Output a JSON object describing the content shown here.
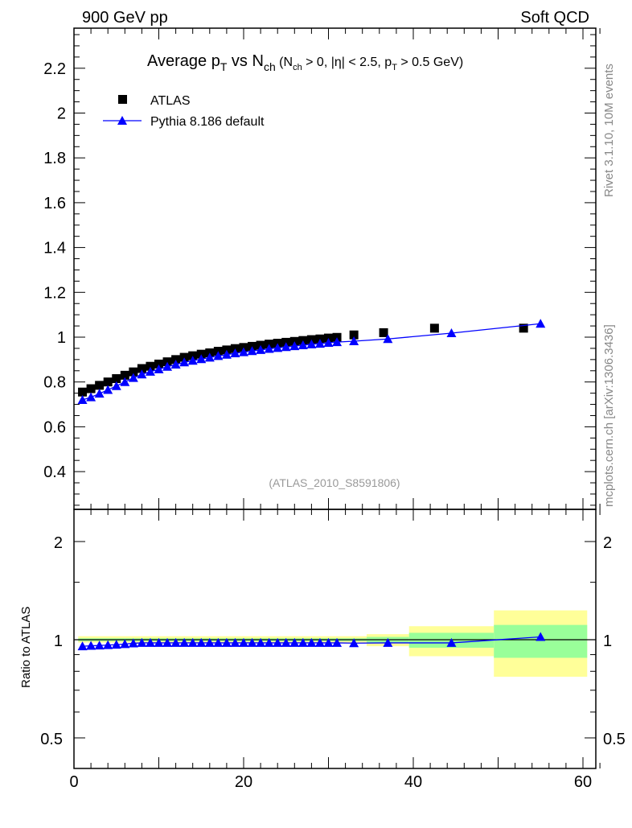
{
  "header": {
    "left": "900 GeV pp",
    "right": "Soft QCD"
  },
  "side": {
    "rivet": "Rivet 3.1.10,  10M events",
    "mcplots": "mcplots.cern.ch [arXiv:1306.3436]"
  },
  "chart_data": {
    "type": "scatter",
    "title": "Average pT vs Nch (Nch > 0, |η| < 2.5, pT > 0.5 GeV)",
    "title_parts": {
      "main": "Average p",
      "sub_T": "T",
      "vs": " vs N",
      "sub_ch": "ch",
      "cond1": " (N",
      "cond2": " > 0, |η| < 2.5, p",
      "cond3": " > 0.5 GeV)"
    },
    "watermark": "(ATLAS_2010_S8591806)",
    "xlim": [
      0,
      62
    ],
    "ylim": [
      0.23,
      2.38
    ],
    "ratio_ylim": [
      0.4,
      2.48
    ],
    "ratio_ylabel": "Ratio to ATLAS",
    "x_ticks": [
      "0",
      "20",
      "40",
      "60"
    ],
    "y_ticks": [
      "0.4",
      "0.6",
      "0.8",
      "1",
      "1.2",
      "1.4",
      "1.6",
      "1.8",
      "2",
      "2.2"
    ],
    "ratio_ticks": [
      "0.5",
      "1",
      "2"
    ],
    "legend": [
      "ATLAS",
      "Pythia 8.186 default"
    ],
    "legend_position": "top-left",
    "colors": {
      "data": "#000000",
      "mc": "#0000ff",
      "band_outer": "#ffff99",
      "band_inner": "#99ff99"
    },
    "series": [
      {
        "name": "ATLAS",
        "x": [
          1,
          2,
          3,
          4,
          5,
          6,
          7,
          8,
          9,
          10,
          11,
          12,
          13,
          14,
          15,
          16,
          17,
          18,
          19,
          20,
          21,
          22,
          23,
          24,
          25,
          26,
          27,
          28,
          29,
          30,
          31,
          33,
          36.5,
          42.5,
          53
        ],
        "y": [
          0.755,
          0.77,
          0.785,
          0.8,
          0.815,
          0.83,
          0.845,
          0.86,
          0.87,
          0.88,
          0.89,
          0.9,
          0.91,
          0.917,
          0.924,
          0.93,
          0.937,
          0.943,
          0.949,
          0.954,
          0.959,
          0.964,
          0.969,
          0.973,
          0.977,
          0.981,
          0.985,
          0.989,
          0.992,
          0.996,
          0.999,
          1.01,
          1.02,
          1.04,
          1.04
        ]
      },
      {
        "name": "Pythia 8.186 default",
        "x": [
          1,
          2,
          3,
          4,
          5,
          6,
          7,
          8,
          9,
          10,
          11,
          12,
          13,
          14,
          15,
          16,
          17,
          18,
          19,
          20,
          21,
          22,
          23,
          24,
          25,
          26,
          27,
          28,
          29,
          30,
          31,
          33,
          37,
          44.5,
          55
        ],
        "y": [
          0.72,
          0.732,
          0.748,
          0.765,
          0.782,
          0.8,
          0.818,
          0.834,
          0.846,
          0.857,
          0.868,
          0.878,
          0.888,
          0.895,
          0.902,
          0.909,
          0.916,
          0.922,
          0.928,
          0.933,
          0.938,
          0.943,
          0.948,
          0.952,
          0.956,
          0.96,
          0.964,
          0.968,
          0.971,
          0.975,
          0.978,
          0.982,
          0.992,
          1.018,
          1.06
        ],
        "ratio": [
          0.955,
          0.958,
          0.96,
          0.963,
          0.966,
          0.97,
          0.975,
          0.978,
          0.978,
          0.978,
          0.978,
          0.978,
          0.978,
          0.978,
          0.978,
          0.978,
          0.978,
          0.978,
          0.978,
          0.978,
          0.978,
          0.978,
          0.978,
          0.978,
          0.978,
          0.978,
          0.978,
          0.978,
          0.978,
          0.978,
          0.978,
          0.976,
          0.978,
          0.978,
          1.02
        ]
      }
    ],
    "bands": [
      {
        "x": [
          0.5,
          34.5
        ],
        "outer": [
          0.98,
          1.025
        ],
        "inner": [
          0.99,
          1.01
        ]
      },
      {
        "x": [
          34.5,
          39.5
        ],
        "outer": [
          0.955,
          1.04
        ],
        "inner": [
          0.98,
          1.02
        ]
      },
      {
        "x": [
          39.5,
          49.5
        ],
        "outer": [
          0.89,
          1.1
        ],
        "inner": [
          0.945,
          1.05
        ]
      },
      {
        "x": [
          49.5,
          60.5
        ],
        "outer": [
          0.77,
          1.23
        ],
        "inner": [
          0.88,
          1.11
        ]
      }
    ]
  }
}
